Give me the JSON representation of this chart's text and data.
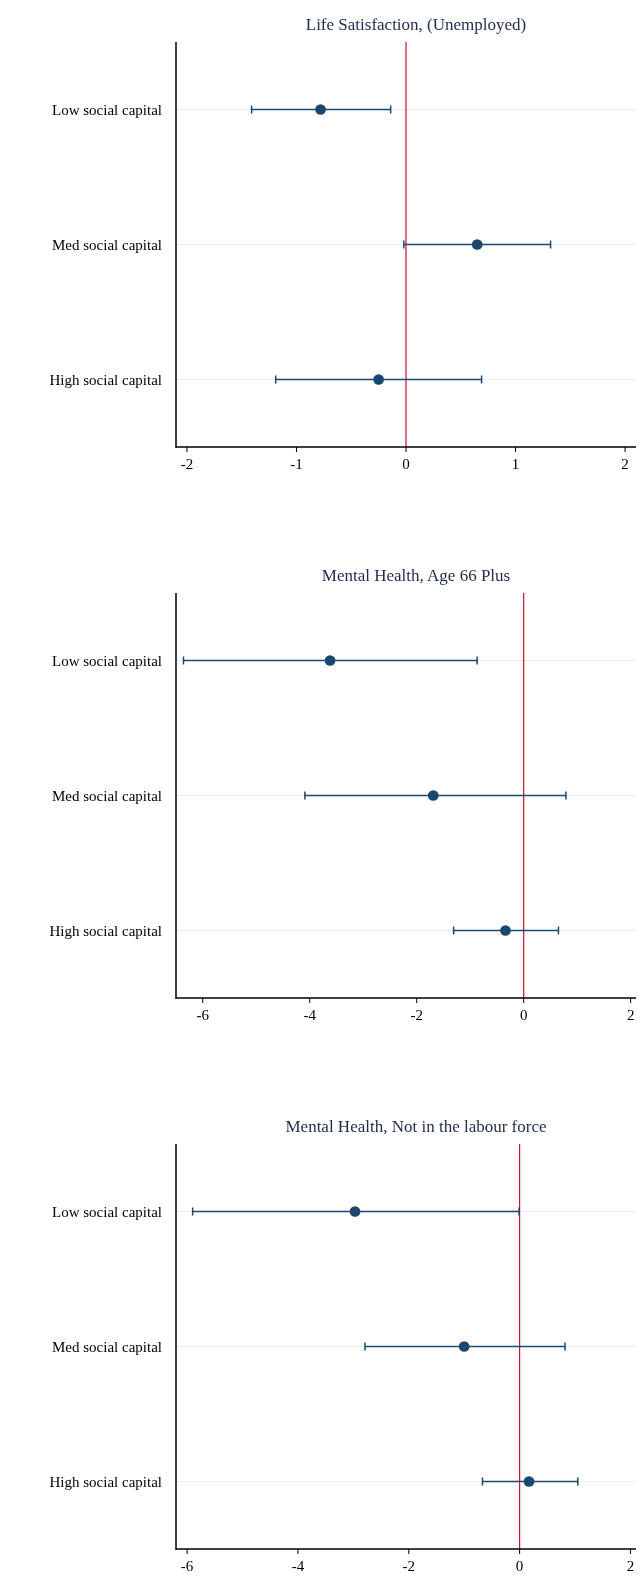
{
  "chart_data": [
    {
      "type": "scatter",
      "orientation": "horizontal",
      "title": "Life Satisfaction, (Unemployed)",
      "categories": [
        "Low social capital",
        "Med social capital",
        "High social capital"
      ],
      "values": [
        -0.78,
        0.65,
        -0.25
      ],
      "errors": [
        [
          -1.41,
          -0.14
        ],
        [
          -0.02,
          1.32
        ],
        [
          -1.19,
          0.69
        ]
      ],
      "color": "#1a476f",
      "marker": "circle",
      "xlim": [
        -2.1,
        2.1
      ],
      "xticks": [
        -2,
        -1,
        0,
        1,
        2
      ],
      "grid": "y",
      "ref_lines": [
        {
          "axis": "x",
          "value": 0,
          "color": "#c8102e"
        }
      ]
    },
    {
      "type": "scatter",
      "orientation": "horizontal",
      "title": "Mental Health, Age 66 Plus",
      "categories": [
        "Low social capital",
        "Med social capital",
        "High social capital"
      ],
      "values": [
        -3.62,
        -1.69,
        -0.34
      ],
      "errors": [
        [
          -6.36,
          -0.87
        ],
        [
          -4.09,
          0.79
        ],
        [
          -1.31,
          0.65
        ]
      ],
      "color": "#1a476f",
      "marker": "circle",
      "xlim": [
        -6.5,
        2.1
      ],
      "xticks": [
        -6,
        -4,
        -2,
        0,
        2
      ],
      "grid": "y",
      "ref_lines": [
        {
          "axis": "x",
          "value": 0,
          "color": "#c8102e"
        }
      ]
    },
    {
      "type": "scatter",
      "orientation": "horizontal",
      "title": "Mental Health, Not in the labour force",
      "categories": [
        "Low social capital",
        "Med social capital",
        "High social capital"
      ],
      "values": [
        -2.97,
        -1.0,
        0.17
      ],
      "errors": [
        [
          -5.9,
          -0.01
        ],
        [
          -2.79,
          0.82
        ],
        [
          -0.67,
          1.05
        ]
      ],
      "color": "#1a476f",
      "marker": "circle",
      "xlim": [
        -6.2,
        2.1
      ],
      "xticks": [
        -6,
        -4,
        -2,
        0,
        2
      ],
      "grid": "y",
      "ref_lines": [
        {
          "axis": "x",
          "value": 0,
          "color": "#c8102e"
        }
      ]
    }
  ]
}
